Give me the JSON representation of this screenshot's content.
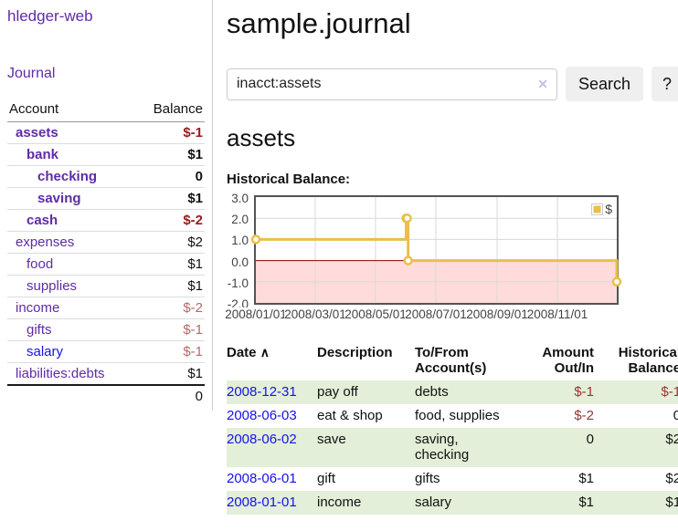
{
  "app": {
    "title": "hledger-web"
  },
  "colors": {
    "link_purple": "#5e2ca5",
    "link_blue": "#1512ee",
    "negative_bold": "#991b1e",
    "negative_muted": "#b46a6a",
    "negative_register": "#993333",
    "row_stripe_green": "#e3efd8",
    "chart_line_yellow": "#e8c04a",
    "chart_negative_bg": "#ffdbdb",
    "chart_zero_line": "#8b0000",
    "button_bg": "#efefef"
  },
  "sidebar": {
    "journal_label": "Journal",
    "headers": {
      "account": "Account",
      "balance": "Balance"
    },
    "accounts": [
      {
        "name": "assets",
        "balance": "$-1"
      },
      {
        "name": "bank",
        "balance": "$1"
      },
      {
        "name": "checking",
        "balance": "0"
      },
      {
        "name": "saving",
        "balance": "$1"
      },
      {
        "name": "cash",
        "balance": "$-2"
      },
      {
        "name": "expenses",
        "balance": "$2"
      },
      {
        "name": "food",
        "balance": "$1"
      },
      {
        "name": "supplies",
        "balance": "$1"
      },
      {
        "name": "income",
        "balance": "$-2"
      },
      {
        "name": "gifts",
        "balance": "$-1"
      },
      {
        "name": "salary",
        "balance": "$-1"
      },
      {
        "name": "liabilities:debts",
        "balance": "$1"
      }
    ],
    "total": "0"
  },
  "main": {
    "title": "sample.journal",
    "search": {
      "value": "inacct:assets",
      "clear_icon": "✕",
      "button_label": "Search",
      "help_label": "?"
    },
    "account_heading": "assets",
    "chart_label": "Historical Balance:"
  },
  "chart_data": {
    "type": "line",
    "title": "Historical Balance:",
    "step": true,
    "series": [
      {
        "name": "$",
        "color": "#e8c04a",
        "points": [
          {
            "date": "2008-01-01",
            "value": 1
          },
          {
            "date": "2008-06-01",
            "value": 2
          },
          {
            "date": "2008-06-02",
            "value": 2
          },
          {
            "date": "2008-06-03",
            "value": 0
          },
          {
            "date": "2008-12-31",
            "value": -1
          }
        ]
      }
    ],
    "x_ticks": [
      "2008/01/01",
      "2008/03/01",
      "2008/05/01",
      "2008/07/01",
      "2008/09/01",
      "2008/11/01"
    ],
    "y_ticks": [
      "3.0",
      "2.0",
      "1.0",
      "0.0",
      "-1.0",
      "-2.0"
    ],
    "xlim": [
      "2008-01-01",
      "2008-12-31"
    ],
    "ylim": [
      -2,
      3
    ],
    "grid": true,
    "legend_position": "top-right"
  },
  "register": {
    "sort_icon": "∧",
    "headers": {
      "date": "Date",
      "description": "Description",
      "account": "To/From Account(s)",
      "amount": "Amount Out/In",
      "balance": "Historical Balance"
    },
    "rows": [
      {
        "date": "2008-12-31",
        "description": "pay off",
        "accounts": "debts",
        "amount": "$-1",
        "balance": "$-1"
      },
      {
        "date": "2008-06-03",
        "description": "eat & shop",
        "accounts": "food, supplies",
        "amount": "$-2",
        "balance": "0"
      },
      {
        "date": "2008-06-02",
        "description": "save",
        "accounts": "saving, checking",
        "amount": "0",
        "balance": "$2"
      },
      {
        "date": "2008-06-01",
        "description": "gift",
        "accounts": "gifts",
        "amount": "$1",
        "balance": "$2"
      },
      {
        "date": "2008-01-01",
        "description": "income",
        "accounts": "salary",
        "amount": "$1",
        "balance": "$1"
      }
    ]
  }
}
